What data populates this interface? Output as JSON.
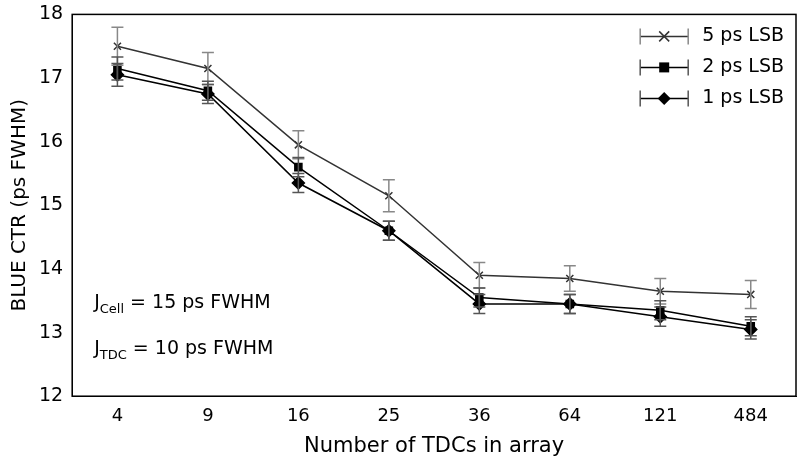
{
  "chart_data": {
    "type": "line",
    "x_label": "Number of TDCs in array",
    "y_label": "BLUE CTR (ps FWHM)",
    "categories": [
      "4",
      "9",
      "16",
      "25",
      "36",
      "64",
      "121",
      "484"
    ],
    "ylim": [
      12,
      18
    ],
    "yticks": [
      12,
      13,
      14,
      15,
      16,
      17,
      18
    ],
    "grid": false,
    "legend": "upper right",
    "series": [
      {
        "name": "5 ps LSB",
        "color": "#333333",
        "marker": "x",
        "values": [
          17.5,
          17.15,
          15.95,
          15.15,
          13.9,
          13.85,
          13.65,
          13.6
        ],
        "errors": [
          0.3,
          0.25,
          0.22,
          0.25,
          0.2,
          0.2,
          0.2,
          0.22
        ]
      },
      {
        "name": "2 ps LSB",
        "color": "#000000",
        "marker": "square",
        "values": [
          17.15,
          16.8,
          15.6,
          14.6,
          13.55,
          13.45,
          13.35,
          13.1
        ],
        "errors": [
          0.18,
          0.15,
          0.15,
          0.15,
          0.15,
          0.15,
          0.15,
          0.15
        ]
      },
      {
        "name": "1 ps LSB",
        "color": "#000000",
        "marker": "diamond",
        "values": [
          17.05,
          16.75,
          15.35,
          14.6,
          13.45,
          13.45,
          13.25,
          13.05
        ],
        "errors": [
          0.18,
          0.15,
          0.15,
          0.15,
          0.15,
          0.15,
          0.15,
          0.15
        ]
      }
    ],
    "annotations": [
      {
        "base": "J",
        "sub": "Cell",
        "rest": " = 15 ps FWHM"
      },
      {
        "base": "J",
        "sub": "TDC",
        "rest": " = 10 ps FWHM"
      }
    ]
  }
}
